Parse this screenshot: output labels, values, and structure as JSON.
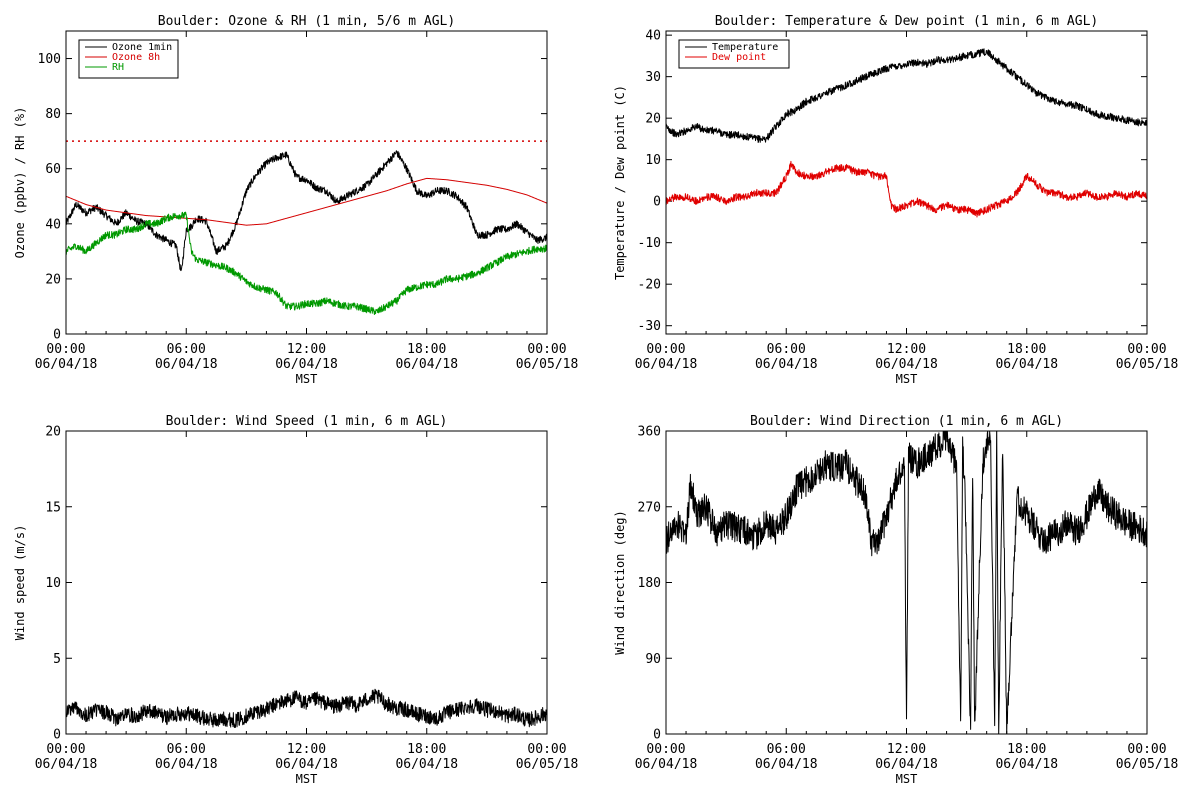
{
  "colors": {
    "background": "#ffffff",
    "axes": "#000000",
    "ozone_1min": "#000000",
    "ozone_8h": "#d40000",
    "rh": "#009900",
    "temperature": "#000000",
    "dew_point": "#e00000"
  },
  "chart_data": [
    {
      "id": "ozone",
      "type": "line",
      "title": "Boulder: Ozone & RH (1 min, 5/6 m AGL)",
      "xlabel": "MST",
      "ylabel": "Ozone (ppbv) / RH (%)",
      "xlim": [
        0,
        24
      ],
      "ylim": [
        0,
        110
      ],
      "xticks": [
        {
          "v": 0,
          "l1": "00:00",
          "l2": "06/04/18"
        },
        {
          "v": 6,
          "l1": "06:00",
          "l2": "06/04/18"
        },
        {
          "v": 12,
          "l1": "12:00",
          "l2": "06/04/18"
        },
        {
          "v": 18,
          "l1": "18:00",
          "l2": "06/04/18"
        },
        {
          "v": 24,
          "l1": "00:00",
          "l2": "06/05/18"
        }
      ],
      "yticks": [
        0,
        20,
        40,
        60,
        80,
        100
      ],
      "grid": false,
      "legend": "top-left",
      "reference_line": {
        "y": 70,
        "color": "#d40000",
        "style": "dotted"
      },
      "series": [
        {
          "name": "Ozone 1min",
          "color": "#000000",
          "x": [
            0,
            0.5,
            1,
            1.5,
            2,
            2.5,
            3,
            3.5,
            4,
            4.5,
            5,
            5.5,
            5.75,
            6,
            6.25,
            6.5,
            7,
            7.5,
            8,
            8.5,
            9,
            9.5,
            10,
            10.5,
            11,
            11.5,
            12,
            12.5,
            13,
            13.5,
            14,
            14.5,
            15,
            15.5,
            16,
            16.5,
            17,
            17.5,
            18,
            18.5,
            19,
            19.5,
            20,
            20.5,
            21,
            21.5,
            22,
            22.5,
            23,
            23.5,
            24
          ],
          "y": [
            40,
            47,
            44,
            46,
            43,
            40,
            44,
            41,
            40,
            36,
            34,
            32,
            22,
            38,
            39,
            42,
            41,
            30,
            32,
            40,
            52,
            58,
            62,
            64,
            65,
            57,
            56,
            53,
            52,
            48,
            50,
            52,
            54,
            58,
            62,
            66,
            60,
            52,
            50,
            52,
            52,
            50,
            46,
            36,
            36,
            38,
            38,
            40,
            37,
            34,
            35
          ]
        },
        {
          "name": "Ozone 8h",
          "color": "#d40000",
          "x": [
            0,
            1,
            2,
            3,
            4,
            5,
            6,
            7,
            8,
            9,
            10,
            11,
            12,
            13,
            14,
            15,
            16,
            17,
            18,
            19,
            20,
            21,
            22,
            23,
            24
          ],
          "y": [
            50,
            47,
            45,
            44,
            43,
            42.5,
            42,
            41.5,
            40.5,
            39.5,
            40,
            42,
            44,
            46,
            48,
            50,
            52,
            54.5,
            56.5,
            56,
            55,
            54,
            52.5,
            50.5,
            47.5
          ]
        },
        {
          "name": "RH",
          "color": "#009900",
          "x": [
            0,
            0.5,
            1,
            1.5,
            2,
            2.5,
            3,
            3.5,
            4,
            4.5,
            5,
            5.5,
            6,
            6.25,
            6.5,
            7,
            7.5,
            8,
            8.5,
            9,
            9.5,
            10,
            10.5,
            11,
            11.5,
            12,
            12.5,
            13,
            13.5,
            14,
            14.5,
            15,
            15.5,
            16,
            16.5,
            17,
            17.5,
            18,
            18.5,
            19,
            19.5,
            20,
            20.5,
            21,
            21.5,
            22,
            22.5,
            23,
            23.5,
            24
          ],
          "y": [
            30,
            32,
            30,
            33,
            36,
            36,
            38,
            38,
            40,
            40,
            42,
            43,
            43,
            30,
            27,
            26,
            25,
            24,
            22,
            19,
            17,
            16,
            15,
            10,
            10,
            11,
            11,
            12,
            11,
            10,
            10,
            9,
            8,
            10,
            12,
            16,
            17,
            18,
            18,
            20,
            20,
            21,
            22,
            24,
            26,
            28,
            29,
            30,
            31,
            31
          ]
        }
      ]
    },
    {
      "id": "temperature",
      "type": "line",
      "title": "Boulder: Temperature & Dew point (1 min, 6 m AGL)",
      "xlabel": "MST",
      "ylabel": "Temperature / Dew point (C)",
      "xlim": [
        0,
        24
      ],
      "ylim": [
        -32,
        41
      ],
      "xticks": [
        {
          "v": 0,
          "l1": "00:00",
          "l2": "06/04/18"
        },
        {
          "v": 6,
          "l1": "06:00",
          "l2": "06/04/18"
        },
        {
          "v": 12,
          "l1": "12:00",
          "l2": "06/04/18"
        },
        {
          "v": 18,
          "l1": "18:00",
          "l2": "06/04/18"
        },
        {
          "v": 24,
          "l1": "00:00",
          "l2": "06/05/18"
        }
      ],
      "yticks": [
        -30,
        -20,
        -10,
        0,
        10,
        20,
        30,
        40
      ],
      "grid": false,
      "legend": "top-left",
      "series": [
        {
          "name": "Temperature",
          "color": "#000000",
          "x": [
            0,
            0.5,
            1,
            1.5,
            2,
            2.5,
            3,
            3.5,
            4,
            4.5,
            5,
            5.5,
            6,
            6.5,
            7,
            7.5,
            8,
            8.5,
            9,
            9.5,
            10,
            10.5,
            11,
            11.5,
            12,
            12.5,
            13,
            13.5,
            14,
            14.5,
            15,
            15.5,
            16,
            16.5,
            17,
            17.5,
            18,
            18.5,
            19,
            19.5,
            20,
            20.5,
            21,
            21.5,
            22,
            22.5,
            23,
            23.5,
            24
          ],
          "y": [
            18,
            16,
            17,
            18,
            17,
            17,
            16,
            16,
            15.5,
            15,
            15,
            18,
            21,
            22,
            24,
            25,
            26,
            27,
            28,
            29,
            30,
            31,
            32,
            32.5,
            33,
            33.5,
            33,
            34,
            34,
            34.5,
            35,
            35.5,
            36,
            34,
            32,
            30,
            28,
            26,
            25,
            24,
            23.5,
            23,
            22,
            21,
            20.5,
            20,
            19.5,
            19,
            19
          ]
        },
        {
          "name": "Dew point",
          "color": "#e00000",
          "x": [
            0,
            0.5,
            1,
            1.5,
            2,
            2.5,
            3,
            3.5,
            4,
            4.5,
            5,
            5.5,
            6,
            6.25,
            6.5,
            7,
            7.5,
            8,
            8.5,
            9,
            9.5,
            10,
            10.5,
            11,
            11.25,
            11.5,
            12,
            12.5,
            13,
            13.5,
            14,
            14.5,
            15,
            15.5,
            16,
            16.5,
            17,
            17.5,
            18,
            18.5,
            19,
            19.5,
            20,
            20.5,
            21,
            21.5,
            22,
            22.5,
            23,
            23.5,
            24
          ],
          "y": [
            0,
            1,
            1,
            0,
            1,
            1,
            0,
            1,
            1,
            2,
            2,
            2,
            6,
            9,
            7,
            6,
            6,
            7,
            8,
            8,
            7,
            7,
            6,
            6,
            -1,
            -2,
            -1,
            0,
            -1,
            -2,
            -1,
            -2,
            -2,
            -3,
            -2,
            -1,
            0,
            2,
            6,
            4,
            2,
            2,
            1,
            1,
            2,
            1,
            1,
            2,
            1,
            2,
            1
          ]
        }
      ]
    },
    {
      "id": "wind_speed",
      "type": "line",
      "title": "Boulder: Wind Speed (1 min, 6 m AGL)",
      "xlabel": "MST",
      "ylabel": "Wind speed (m/s)",
      "xlim": [
        0,
        24
      ],
      "ylim": [
        0,
        20
      ],
      "xticks": [
        {
          "v": 0,
          "l1": "00:00",
          "l2": "06/04/18"
        },
        {
          "v": 6,
          "l1": "06:00",
          "l2": "06/04/18"
        },
        {
          "v": 12,
          "l1": "12:00",
          "l2": "06/04/18"
        },
        {
          "v": 18,
          "l1": "18:00",
          "l2": "06/04/18"
        },
        {
          "v": 24,
          "l1": "00:00",
          "l2": "06/05/18"
        }
      ],
      "yticks": [
        0,
        5,
        10,
        15,
        20
      ],
      "grid": false,
      "series": [
        {
          "color": "#000000",
          "x": [
            0,
            0.5,
            1,
            1.5,
            2,
            2.5,
            3,
            3.5,
            4,
            4.5,
            5,
            5.5,
            6,
            6.5,
            7,
            7.5,
            8,
            8.5,
            9,
            9.5,
            10,
            10.5,
            11,
            11.5,
            12,
            12.5,
            13,
            13.5,
            14,
            14.5,
            15,
            15.5,
            16,
            16.5,
            17,
            17.5,
            18,
            18.5,
            19,
            19.5,
            20,
            20.5,
            21,
            21.5,
            22,
            22.5,
            23,
            23.5,
            24
          ],
          "y": [
            1.5,
            1.8,
            1.2,
            1.6,
            1.4,
            1.0,
            1.3,
            1.2,
            1.5,
            1.4,
            1.1,
            1.3,
            1.4,
            1.2,
            1.0,
            0.9,
            1.0,
            0.9,
            1.2,
            1.5,
            1.6,
            2.0,
            2.2,
            2.4,
            2.0,
            2.3,
            2.0,
            1.8,
            2.1,
            1.9,
            2.3,
            2.5,
            2.0,
            1.7,
            1.6,
            1.3,
            1.2,
            1.0,
            1.4,
            1.6,
            1.8,
            1.9,
            1.6,
            1.5,
            1.2,
            1.3,
            0.9,
            1.1,
            1.4
          ]
        }
      ]
    },
    {
      "id": "wind_direction",
      "type": "line",
      "title": "Boulder: Wind Direction (1 min, 6 m AGL)",
      "xlabel": "MST",
      "ylabel": "Wind direction (deg)",
      "xlim": [
        0,
        24
      ],
      "ylim": [
        0,
        360
      ],
      "xticks": [
        {
          "v": 0,
          "l1": "00:00",
          "l2": "06/04/18"
        },
        {
          "v": 6,
          "l1": "06:00",
          "l2": "06/04/18"
        },
        {
          "v": 12,
          "l1": "12:00",
          "l2": "06/04/18"
        },
        {
          "v": 18,
          "l1": "18:00",
          "l2": "06/04/18"
        },
        {
          "v": 24,
          "l1": "00:00",
          "l2": "06/05/18"
        }
      ],
      "yticks": [
        0,
        90,
        180,
        270,
        360
      ],
      "grid": false,
      "series": [
        {
          "color": "#000000",
          "x": [
            0,
            0.5,
            1,
            1.25,
            1.5,
            2,
            2.5,
            3,
            3.5,
            4,
            4.5,
            5,
            5.5,
            6,
            6.5,
            7,
            7.5,
            8,
            8.5,
            9,
            9.5,
            10,
            10.25,
            10.5,
            11,
            11.5,
            11.9,
            12,
            12.1,
            12.5,
            13,
            13.5,
            14,
            14.5,
            14.7,
            14.8,
            14.9,
            15.2,
            15.3,
            15.4,
            15.8,
            16,
            16.2,
            16.4,
            16.5,
            16.6,
            16.8,
            17,
            17.5,
            18,
            18.5,
            19,
            19.5,
            20,
            20.5,
            21,
            21.5,
            22,
            22.5,
            23,
            23.5,
            24
          ],
          "y": [
            230,
            250,
            240,
            300,
            260,
            270,
            240,
            250,
            245,
            240,
            235,
            250,
            240,
            260,
            290,
            300,
            310,
            320,
            315,
            320,
            300,
            280,
            230,
            220,
            260,
            300,
            320,
            5,
            330,
            320,
            330,
            340,
            350,
            320,
            5,
            340,
            300,
            5,
            320,
            5,
            320,
            350,
            340,
            5,
            355,
            5,
            350,
            5,
            280,
            260,
            240,
            230,
            240,
            250,
            240,
            260,
            290,
            270,
            260,
            250,
            245,
            240
          ]
        }
      ]
    }
  ]
}
